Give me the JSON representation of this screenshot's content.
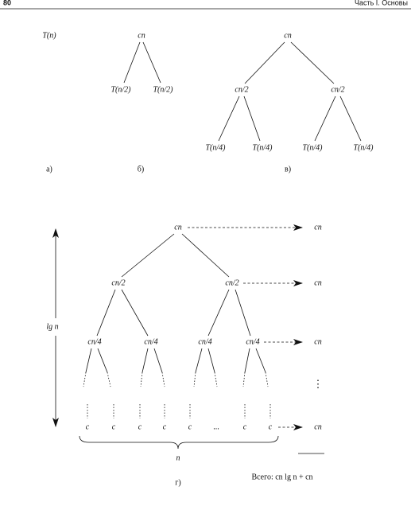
{
  "header": {
    "page_number": "80",
    "running_title": "Часть I. Основы"
  },
  "panel_a": {
    "root": "T(n)",
    "caption": "а)"
  },
  "panel_b": {
    "root": "cn",
    "children": [
      "T(n/2)",
      "T(n/2)"
    ],
    "caption": "б)"
  },
  "panel_c": {
    "root": "cn",
    "level1": [
      "cn/2",
      "cn/2"
    ],
    "level2": [
      "T(n/4)",
      "T(n/4)",
      "T(n/4)",
      "T(n/4)"
    ],
    "caption": "в)"
  },
  "panel_d": {
    "root": "cn",
    "level1": [
      "cn/2",
      "cn/2"
    ],
    "level2": [
      "cn/4",
      "cn/4",
      "cn/4",
      "cn/4"
    ],
    "leaves": [
      "c",
      "c",
      "c",
      "c",
      "c",
      "...",
      "c",
      "c"
    ],
    "level_costs": [
      "cn",
      "cn",
      "cn",
      "cn"
    ],
    "vertical_ellipsis": "⋮",
    "height_label": "lg n",
    "width_label": "n",
    "total": "Всего: cn lg n + cn",
    "caption": "г)"
  }
}
